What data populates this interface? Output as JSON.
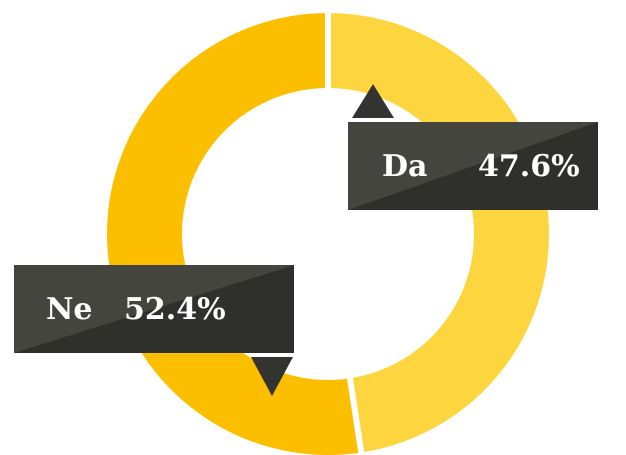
{
  "chart_data": {
    "type": "pie",
    "donut": true,
    "categories": [
      "Da",
      "Ne"
    ],
    "values": [
      47.6,
      52.4
    ],
    "value_labels": [
      "47.6%",
      "52.4%"
    ],
    "colors": [
      "#fdd63f",
      "#fbbf00"
    ]
  }
}
